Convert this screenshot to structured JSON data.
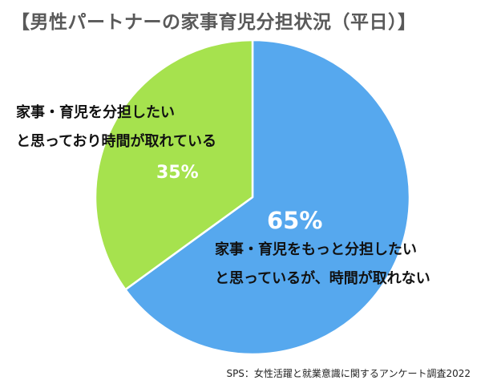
{
  "chart_data": {
    "type": "pie",
    "title": "【男性パートナーの家事育児分担状況（平日）】",
    "slices": [
      {
        "label_lines": [
          "家事・育児をもっと分担したい",
          "と思っているが、時間が取れない"
        ],
        "value": 65,
        "value_label": "65%",
        "color": "#56A8EE"
      },
      {
        "label_lines": [
          "家事・育児を分担したい",
          "と思っており時間が取れている"
        ],
        "value": 35,
        "value_label": "35%",
        "color": "#A6E24E"
      }
    ],
    "start_angle_deg": 0,
    "direction": "clockwise",
    "slice_border_color": "#ffffff",
    "source": "SPS：女性活躍と就業意識に関するアンケート調査2022"
  }
}
